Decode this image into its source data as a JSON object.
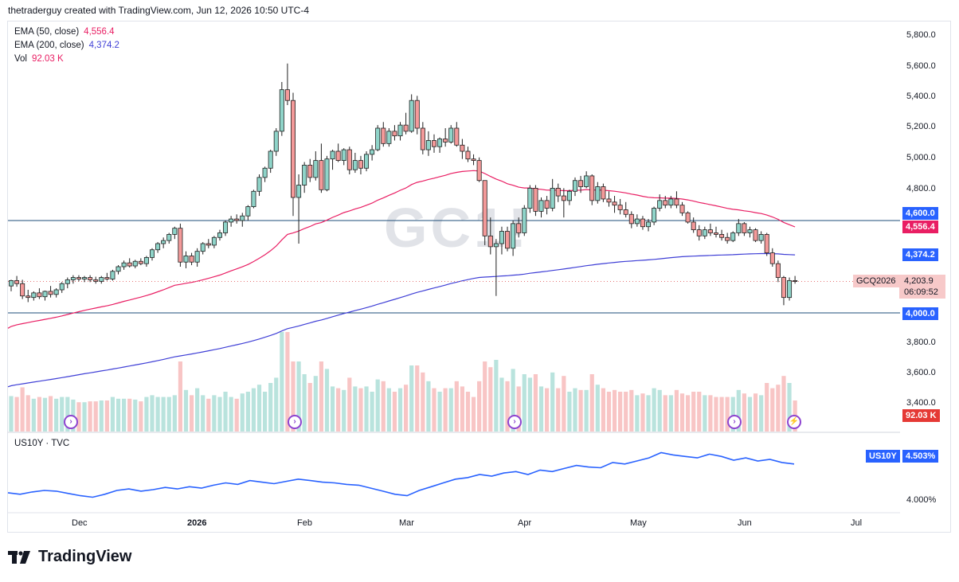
{
  "header": {
    "text": "thetraderguy created with TradingView.com, Jun 12, 2026 10:50 UTC-4"
  },
  "watermark": {
    "symbol": "GC1!"
  },
  "legend": [
    {
      "label": "EMA (50, close)",
      "value": "4,556.4",
      "color": "#e91e63"
    },
    {
      "label": "EMA (200, close)",
      "value": "4,374.2",
      "color": "#3f3fd6"
    },
    {
      "label": "Vol",
      "value": "92.03 K",
      "color": "#e91e63"
    }
  ],
  "price_axis": {
    "ticks": [
      "5,800.0",
      "5,600.0",
      "5,400.0",
      "5,200.0",
      "5,000.0",
      "4,800.0",
      "4,000.0",
      "3,800.0",
      "3,600.0",
      "3,400.0"
    ],
    "badges": [
      {
        "text": "4,600.0",
        "color": "#2962ff"
      },
      {
        "text": "4,556.4",
        "color": "#e91e63"
      },
      {
        "text": "4,374.2",
        "color": "#2962ff"
      },
      {
        "text": "4,000.0",
        "color": "#2962ff"
      },
      {
        "text": "92.03 K",
        "color": "#e53935"
      }
    ],
    "symbol_tag": "GCQ2026",
    "current_price": "4,203.9",
    "countdown": "06:09:52"
  },
  "time_axis": [
    "Dec",
    "2026",
    "Feb",
    "Mar",
    "Apr",
    "May",
    "Jun",
    "Jul"
  ],
  "lower_pane": {
    "legend": "US10Y · TVC",
    "badge_symbol": "US10Y",
    "badge_value": "4.503%",
    "tick": "4.000%",
    "color": "#2962ff"
  },
  "footer": {
    "brand": "TradingView"
  },
  "chart_data": {
    "type": "candlestick",
    "symbol": "GCQ2026",
    "horizontal_lines": [
      4600,
      4000
    ],
    "ylim": [
      3300,
      5900
    ],
    "candles": [
      [
        4175,
        4215,
        4140,
        4210
      ],
      [
        4210,
        4240,
        4170,
        4190
      ],
      [
        4190,
        4215,
        4090,
        4110
      ],
      [
        4110,
        4150,
        4070,
        4100
      ],
      [
        4100,
        4140,
        4080,
        4130
      ],
      [
        4130,
        4160,
        4090,
        4105
      ],
      [
        4105,
        4145,
        4080,
        4140
      ],
      [
        4140,
        4175,
        4100,
        4120
      ],
      [
        4120,
        4160,
        4100,
        4150
      ],
      [
        4150,
        4200,
        4130,
        4190
      ],
      [
        4190,
        4230,
        4160,
        4215
      ],
      [
        4215,
        4245,
        4190,
        4230
      ],
      [
        4230,
        4245,
        4205,
        4220
      ],
      [
        4220,
        4240,
        4200,
        4230
      ],
      [
        4230,
        4245,
        4200,
        4215
      ],
      [
        4215,
        4235,
        4190,
        4205
      ],
      [
        4205,
        4240,
        4190,
        4230
      ],
      [
        4230,
        4260,
        4210,
        4220
      ],
      [
        4220,
        4280,
        4210,
        4270
      ],
      [
        4270,
        4310,
        4250,
        4300
      ],
      [
        4300,
        4340,
        4280,
        4325
      ],
      [
        4325,
        4355,
        4295,
        4305
      ],
      [
        4305,
        4345,
        4290,
        4335
      ],
      [
        4335,
        4355,
        4310,
        4320
      ],
      [
        4320,
        4370,
        4300,
        4360
      ],
      [
        4360,
        4420,
        4340,
        4410
      ],
      [
        4410,
        4460,
        4390,
        4450
      ],
      [
        4450,
        4490,
        4420,
        4470
      ],
      [
        4470,
        4520,
        4450,
        4510
      ],
      [
        4510,
        4560,
        4480,
        4550
      ],
      [
        4550,
        4580,
        4300,
        4330
      ],
      [
        4330,
        4400,
        4290,
        4370
      ],
      [
        4370,
        4390,
        4310,
        4330
      ],
      [
        4330,
        4420,
        4300,
        4400
      ],
      [
        4400,
        4460,
        4380,
        4450
      ],
      [
        4450,
        4480,
        4420,
        4440
      ],
      [
        4440,
        4500,
        4420,
        4490
      ],
      [
        4490,
        4540,
        4470,
        4520
      ],
      [
        4520,
        4600,
        4500,
        4590
      ],
      [
        4590,
        4630,
        4560,
        4610
      ],
      [
        4610,
        4640,
        4580,
        4600
      ],
      [
        4600,
        4650,
        4560,
        4630
      ],
      [
        4630,
        4700,
        4600,
        4690
      ],
      [
        4690,
        4800,
        4680,
        4790
      ],
      [
        4790,
        4900,
        4760,
        4880
      ],
      [
        4880,
        4950,
        4850,
        4940
      ],
      [
        4940,
        5060,
        4910,
        5050
      ],
      [
        5050,
        5200,
        5020,
        5180
      ],
      [
        5180,
        5500,
        5150,
        5450
      ],
      [
        5450,
        5620,
        5350,
        5380
      ],
      [
        5380,
        5430,
        4630,
        4750
      ],
      [
        4750,
        4900,
        4450,
        4830
      ],
      [
        4830,
        4980,
        4780,
        4960
      ],
      [
        4960,
        5000,
        4850,
        4880
      ],
      [
        4880,
        5050,
        4860,
        4990
      ],
      [
        4990,
        5100,
        4780,
        4800
      ],
      [
        4800,
        5020,
        4790,
        5000
      ],
      [
        5000,
        5060,
        4930,
        5050
      ],
      [
        5050,
        5100,
        4980,
        4990
      ],
      [
        4990,
        5070,
        4960,
        5060
      ],
      [
        5060,
        5080,
        4900,
        4930
      ],
      [
        4930,
        5040,
        4910,
        4990
      ],
      [
        4990,
        5020,
        4900,
        4940
      ],
      [
        4940,
        5050,
        4920,
        5030
      ],
      [
        5030,
        5090,
        4990,
        5060
      ],
      [
        5060,
        5220,
        5050,
        5200
      ],
      [
        5200,
        5240,
        5080,
        5100
      ],
      [
        5100,
        5200,
        5080,
        5180
      ],
      [
        5180,
        5220,
        5120,
        5150
      ],
      [
        5150,
        5240,
        5120,
        5220
      ],
      [
        5220,
        5300,
        5160,
        5180
      ],
      [
        5180,
        5420,
        5170,
        5380
      ],
      [
        5380,
        5410,
        5160,
        5200
      ],
      [
        5200,
        5240,
        5030,
        5060
      ],
      [
        5060,
        5180,
        5020,
        5120
      ],
      [
        5120,
        5160,
        5040,
        5080
      ],
      [
        5080,
        5140,
        5040,
        5130
      ],
      [
        5130,
        5200,
        5080,
        5110
      ],
      [
        5110,
        5220,
        5100,
        5200
      ],
      [
        5200,
        5240,
        5080,
        5090
      ],
      [
        5090,
        5130,
        5000,
        5050
      ],
      [
        5050,
        5080,
        4980,
        5000
      ],
      [
        5000,
        5030,
        4960,
        4990
      ],
      [
        4990,
        5010,
        4850,
        4860
      ],
      [
        4860,
        4860,
        4440,
        4500
      ],
      [
        4500,
        4620,
        4380,
        4430
      ],
      [
        4430,
        4480,
        4110,
        4450
      ],
      [
        4450,
        4560,
        4380,
        4530
      ],
      [
        4530,
        4560,
        4400,
        4420
      ],
      [
        4420,
        4600,
        4370,
        4580
      ],
      [
        4580,
        4620,
        4490,
        4520
      ],
      [
        4520,
        4700,
        4500,
        4680
      ],
      [
        4680,
        4830,
        4650,
        4810
      ],
      [
        4810,
        4830,
        4630,
        4660
      ],
      [
        4660,
        4750,
        4620,
        4730
      ],
      [
        4730,
        4760,
        4640,
        4680
      ],
      [
        4680,
        4870,
        4660,
        4810
      ],
      [
        4810,
        4840,
        4720,
        4760
      ],
      [
        4760,
        4810,
        4620,
        4730
      ],
      [
        4730,
        4800,
        4700,
        4790
      ],
      [
        4790,
        4880,
        4760,
        4860
      ],
      [
        4860,
        4890,
        4780,
        4820
      ],
      [
        4820,
        4920,
        4810,
        4890
      ],
      [
        4890,
        4900,
        4700,
        4730
      ],
      [
        4730,
        4850,
        4710,
        4820
      ],
      [
        4820,
        4840,
        4720,
        4740
      ],
      [
        4740,
        4790,
        4690,
        4720
      ],
      [
        4720,
        4760,
        4650,
        4700
      ],
      [
        4700,
        4740,
        4640,
        4670
      ],
      [
        4670,
        4720,
        4620,
        4640
      ],
      [
        4640,
        4660,
        4550,
        4580
      ],
      [
        4580,
        4640,
        4560,
        4610
      ],
      [
        4610,
        4630,
        4540,
        4560
      ],
      [
        4560,
        4610,
        4530,
        4590
      ],
      [
        4590,
        4690,
        4570,
        4680
      ],
      [
        4680,
        4770,
        4660,
        4730
      ],
      [
        4730,
        4760,
        4680,
        4700
      ],
      [
        4700,
        4760,
        4680,
        4740
      ],
      [
        4740,
        4790,
        4680,
        4700
      ],
      [
        4700,
        4720,
        4630,
        4650
      ],
      [
        4650,
        4660,
        4580,
        4590
      ],
      [
        4590,
        4620,
        4520,
        4540
      ],
      [
        4540,
        4570,
        4470,
        4500
      ],
      [
        4500,
        4560,
        4480,
        4540
      ],
      [
        4540,
        4580,
        4500,
        4520
      ],
      [
        4520,
        4560,
        4490,
        4510
      ],
      [
        4510,
        4540,
        4470,
        4490
      ],
      [
        4490,
        4520,
        4450,
        4470
      ],
      [
        4470,
        4530,
        4460,
        4520
      ],
      [
        4520,
        4610,
        4500,
        4580
      ],
      [
        4580,
        4590,
        4500,
        4520
      ],
      [
        4520,
        4560,
        4490,
        4540
      ],
      [
        4540,
        4550,
        4460,
        4470
      ],
      [
        4470,
        4530,
        4450,
        4510
      ],
      [
        4510,
        4520,
        4370,
        4390
      ],
      [
        4390,
        4420,
        4300,
        4320
      ],
      [
        4320,
        4340,
        4200,
        4230
      ],
      [
        4230,
        4240,
        4050,
        4100
      ],
      [
        4100,
        4230,
        4080,
        4210
      ],
      [
        4210,
        4240,
        4190,
        4204
      ]
    ],
    "ema50_end": 4556.4,
    "ema200_end": 4374.2,
    "volume_last": "92.03 K",
    "us10y_last": "4.503%"
  }
}
